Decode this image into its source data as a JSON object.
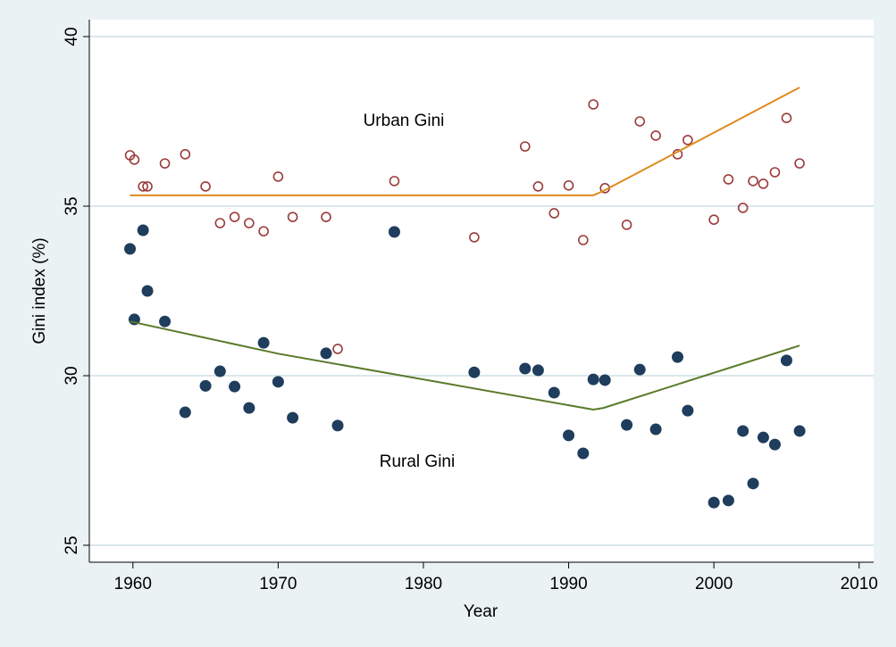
{
  "chart_data": {
    "type": "scatter",
    "xlabel": "Year",
    "ylabel": "Gini index (%)",
    "annotations": [
      "Urban Gini",
      "Rural Gini"
    ],
    "xlim": [
      1957,
      2011
    ],
    "ylim": [
      24.5,
      40.5
    ],
    "xticks": [
      1960,
      1970,
      1980,
      1990,
      2000,
      2010
    ],
    "yticks": [
      25,
      30,
      35,
      40
    ],
    "grid": true,
    "series": [
      {
        "mode": "hollow",
        "color": "#9b3a3a",
        "x": [
          1959.8,
          1960.7,
          1960.1,
          1961.0,
          1962.2,
          1963.6,
          1965.0,
          1966.0,
          1967.0,
          1968.0,
          1969.0,
          1970.0,
          1971.0,
          1973.3,
          1974.1,
          1978.0,
          1983.5,
          1987.0,
          1987.9,
          1989.0,
          1990.0,
          1991.0,
          1991.7,
          1992.5,
          1994.0,
          1994.9,
          1996.0,
          1997.5,
          1998.2,
          2000.0,
          2001.0,
          2002.0,
          2002.7,
          2003.4,
          2004.2,
          2005.0,
          2005.9
        ],
        "values": [
          36.5,
          35.58,
          36.37,
          35.58,
          36.26,
          36.53,
          35.58,
          34.5,
          34.68,
          34.5,
          34.26,
          35.87,
          34.68,
          34.68,
          30.79,
          35.74,
          34.08,
          36.76,
          35.58,
          34.79,
          35.61,
          34.0,
          38.0,
          35.53,
          34.45,
          37.5,
          37.08,
          36.53,
          36.95,
          34.6,
          35.79,
          34.95,
          35.74,
          35.66,
          36.0,
          37.6,
          36.26
        ]
      },
      {
        "mode": "filled",
        "color": "#1f3d5c",
        "x": [
          1959.8,
          1960.7,
          1960.1,
          1961.0,
          1962.2,
          1963.6,
          1965.0,
          1966.0,
          1967.0,
          1968.0,
          1969.0,
          1970.0,
          1971.0,
          1973.3,
          1974.1,
          1978.0,
          1983.5,
          1987.0,
          1987.9,
          1989.0,
          1990.0,
          1991.0,
          1991.7,
          1992.5,
          1994.0,
          1994.9,
          1996.0,
          1997.5,
          1998.2,
          2000.0,
          2001.0,
          2002.0,
          2002.7,
          2003.4,
          2004.2,
          2005.0,
          2005.9
        ],
        "values": [
          33.74,
          34.29,
          31.66,
          32.5,
          31.6,
          28.92,
          29.7,
          30.13,
          29.68,
          29.05,
          30.97,
          29.82,
          28.76,
          30.66,
          28.53,
          34.24,
          30.1,
          30.21,
          30.16,
          29.5,
          28.24,
          27.71,
          29.89,
          29.87,
          28.55,
          30.18,
          28.42,
          30.55,
          28.97,
          26.26,
          26.32,
          28.37,
          26.82,
          28.18,
          27.97,
          30.45,
          28.37
        ]
      },
      {
        "mode": "line",
        "color": "#e08a1e",
        "x": [
          1959.8,
          1991.7,
          1992.4,
          2005.9
        ],
        "values": [
          35.32,
          35.32,
          35.45,
          38.5
        ]
      },
      {
        "mode": "line",
        "color": "#5a7a2a",
        "x": [
          1959.8,
          1970.0,
          1991.7,
          1992.4,
          2005.9
        ],
        "values": [
          31.6,
          30.65,
          29.0,
          29.05,
          30.89
        ]
      }
    ]
  }
}
